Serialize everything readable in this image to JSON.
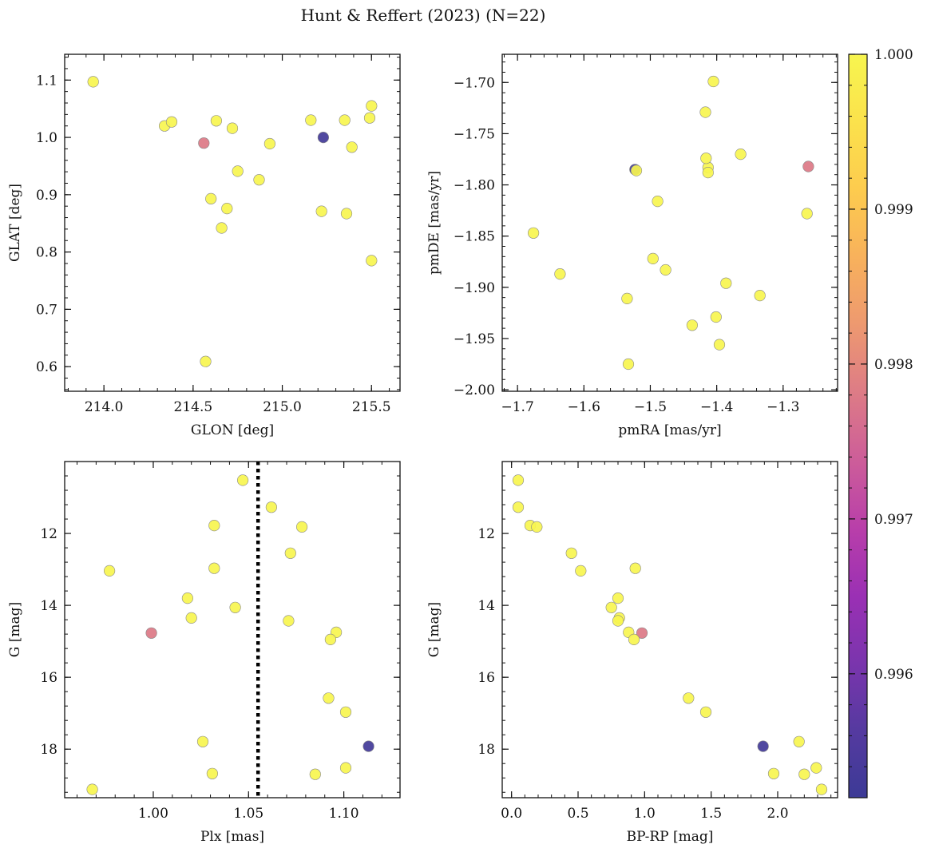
{
  "chart_data": {
    "title": "Hunt & Reffert (2023) (N=22)",
    "type": "scatter",
    "colorbar": {
      "colormap": "plasma",
      "range": [
        0.9952,
        1.0
      ],
      "ticks": [
        1.0,
        0.999,
        0.998,
        0.997,
        0.996
      ],
      "tick_labels": [
        "1.000",
        "0.999",
        "0.998",
        "0.997",
        "0.996"
      ]
    },
    "stars": [
      {
        "glon": 213.94,
        "glat": 1.097,
        "pmra": -1.676,
        "pmde": -1.847,
        "plx": 0.968,
        "g": 19.12,
        "bprp": 2.33,
        "prob": 1.0
      },
      {
        "glon": 214.34,
        "glat": 1.02,
        "pmra": -1.636,
        "pmde": -1.887,
        "plx": 0.977,
        "g": 13.04,
        "bprp": 0.52,
        "prob": 1.0
      },
      {
        "glon": 214.38,
        "glat": 1.027,
        "pmra": -1.496,
        "pmde": -1.872,
        "plx": 1.018,
        "g": 13.8,
        "bprp": 0.8,
        "prob": 1.0
      },
      {
        "glon": 214.56,
        "glat": 0.99,
        "pmra": -1.262,
        "pmde": -1.782,
        "plx": 0.999,
        "g": 14.77,
        "bprp": 0.98,
        "prob": 0.9978
      },
      {
        "glon": 214.57,
        "glat": 0.609,
        "pmra": -1.533,
        "pmde": -1.975,
        "plx": 1.026,
        "g": 17.79,
        "bprp": 2.16,
        "prob": 1.0
      },
      {
        "glon": 214.6,
        "glat": 0.893,
        "pmra": -1.477,
        "pmde": -1.883,
        "plx": 1.02,
        "g": 14.35,
        "bprp": 0.81,
        "prob": 1.0
      },
      {
        "glon": 214.63,
        "glat": 1.029,
        "pmra": -1.413,
        "pmde": -1.783,
        "plx": 1.032,
        "g": 11.78,
        "bprp": 0.14,
        "prob": 1.0
      },
      {
        "glon": 214.66,
        "glat": 0.842,
        "pmra": -1.437,
        "pmde": -1.937,
        "plx": 1.031,
        "g": 18.68,
        "bprp": 1.97,
        "prob": 1.0
      },
      {
        "glon": 214.69,
        "glat": 0.876,
        "pmra": -1.401,
        "pmde": -1.929,
        "plx": 1.043,
        "g": 14.06,
        "bprp": 0.75,
        "prob": 1.0
      },
      {
        "glon": 214.72,
        "glat": 1.016,
        "pmra": -1.417,
        "pmde": -1.729,
        "plx": 1.032,
        "g": 12.97,
        "bprp": 0.93,
        "prob": 1.0
      },
      {
        "glon": 214.75,
        "glat": 0.941,
        "pmra": -1.489,
        "pmde": -1.816,
        "plx": 1.062,
        "g": 11.27,
        "bprp": 0.05,
        "prob": 1.0
      },
      {
        "glon": 214.87,
        "glat": 0.926,
        "pmra": -1.386,
        "pmde": -1.896,
        "plx": 1.071,
        "g": 14.43,
        "bprp": 0.8,
        "prob": 1.0
      },
      {
        "glon": 214.93,
        "glat": 0.989,
        "pmra": -1.364,
        "pmde": -1.77,
        "plx": 1.047,
        "g": 10.52,
        "bprp": 0.05,
        "prob": 1.0
      },
      {
        "glon": 215.16,
        "glat": 1.03,
        "pmra": -1.405,
        "pmde": -1.699,
        "plx": 1.072,
        "g": 12.55,
        "bprp": 0.45,
        "prob": 1.0
      },
      {
        "glon": 215.22,
        "glat": 0.871,
        "pmra": -1.264,
        "pmde": -1.828,
        "plx": 1.092,
        "g": 16.58,
        "bprp": 1.33,
        "prob": 1.0
      },
      {
        "glon": 215.23,
        "glat": 1.0,
        "pmra": -1.523,
        "pmde": -1.785,
        "plx": 1.113,
        "g": 17.92,
        "bprp": 1.89,
        "prob": 0.9953
      },
      {
        "glon": 215.35,
        "glat": 1.03,
        "pmra": -1.416,
        "pmde": -1.774,
        "plx": 1.078,
        "g": 11.82,
        "bprp": 0.19,
        "prob": 1.0
      },
      {
        "glon": 215.36,
        "glat": 0.867,
        "pmra": -1.335,
        "pmde": -1.908,
        "plx": 1.101,
        "g": 18.52,
        "bprp": 2.29,
        "prob": 1.0
      },
      {
        "glon": 215.39,
        "glat": 0.983,
        "pmra": -1.535,
        "pmde": -1.911,
        "plx": 1.101,
        "g": 16.97,
        "bprp": 1.46,
        "prob": 1.0
      },
      {
        "glon": 215.49,
        "glat": 1.034,
        "pmra": -1.521,
        "pmde": -1.786,
        "plx": 1.096,
        "g": 14.75,
        "bprp": 0.88,
        "prob": 1.0
      },
      {
        "glon": 215.5,
        "glat": 0.785,
        "pmra": -1.396,
        "pmde": -1.956,
        "plx": 1.085,
        "g": 18.7,
        "bprp": 2.2,
        "prob": 1.0
      },
      {
        "glon": 215.5,
        "glat": 1.055,
        "pmra": -1.413,
        "pmde": -1.788,
        "plx": 1.093,
        "g": 14.95,
        "bprp": 0.92,
        "prob": 1.0
      }
    ],
    "panels": [
      {
        "id": "glon-glat",
        "x": "glon",
        "y": "glat",
        "xlabel": "GLON [deg]",
        "ylabel": "GLAT [deg]",
        "xlim": [
          213.78,
          215.66
        ],
        "ylim": [
          0.557,
          1.145
        ],
        "invert_y": false,
        "xticks": [
          214.0,
          214.5,
          215.0,
          215.5
        ],
        "xtick_labels": [
          "214.0",
          "214.5",
          "215.0",
          "215.5"
        ],
        "yticks": [
          0.6,
          0.7,
          0.8,
          0.9,
          1.0,
          1.1
        ],
        "ytick_labels": [
          "0.6",
          "0.7",
          "0.8",
          "0.9",
          "1.0",
          "1.1"
        ],
        "xminor": 0.1,
        "yminor": 0.02
      },
      {
        "id": "pmra-pmde",
        "x": "pmra",
        "y": "pmde",
        "xlabel": "pmRA [mas/yr]",
        "ylabel": "pmDE [mas/yr]",
        "xlim": [
          -1.723,
          -1.218
        ],
        "ylim": [
          -2.0015,
          -1.6725
        ],
        "invert_y": false,
        "xticks": [
          -1.7,
          -1.6,
          -1.5,
          -1.4,
          -1.3
        ],
        "xtick_labels": [
          "−1.7",
          "−1.6",
          "−1.5",
          "−1.4",
          "−1.3"
        ],
        "yticks": [
          -2.0,
          -1.95,
          -1.9,
          -1.85,
          -1.8,
          -1.75,
          -1.7
        ],
        "ytick_labels": [
          "−2.00",
          "−1.95",
          "−1.90",
          "−1.85",
          "−1.80",
          "−1.75",
          "−1.70"
        ],
        "xminor": 0.02,
        "yminor": 0.01
      },
      {
        "id": "plx-g",
        "x": "plx",
        "y": "g",
        "xlabel": "Plx [mas]",
        "ylabel": "G [mag]",
        "xlim": [
          0.9535,
          1.1295
        ],
        "ylim": [
          19.35,
          10.0
        ],
        "invert_y": true,
        "xticks": [
          1.0,
          1.05,
          1.1
        ],
        "xtick_labels": [
          "1.00",
          "1.05",
          "1.10"
        ],
        "yticks": [
          12,
          14,
          16,
          18
        ],
        "ytick_labels": [
          "12",
          "14",
          "16",
          "18"
        ],
        "xminor": 0.01,
        "yminor": 0.4,
        "vline": 1.055
      },
      {
        "id": "bprp-g",
        "x": "bprp",
        "y": "g",
        "xlabel": "BP-RP [mag]",
        "ylabel": "G [mag]",
        "xlim": [
          -0.07,
          2.45
        ],
        "ylim": [
          19.35,
          10.0
        ],
        "invert_y": true,
        "xticks": [
          0.0,
          0.5,
          1.0,
          1.5,
          2.0
        ],
        "xtick_labels": [
          "0.0",
          "0.5",
          "1.0",
          "1.5",
          "2.0"
        ],
        "yticks": [
          12,
          14,
          16,
          18
        ],
        "ytick_labels": [
          "12",
          "14",
          "16",
          "18"
        ],
        "xminor": 0.1,
        "yminor": 0.4
      }
    ]
  }
}
